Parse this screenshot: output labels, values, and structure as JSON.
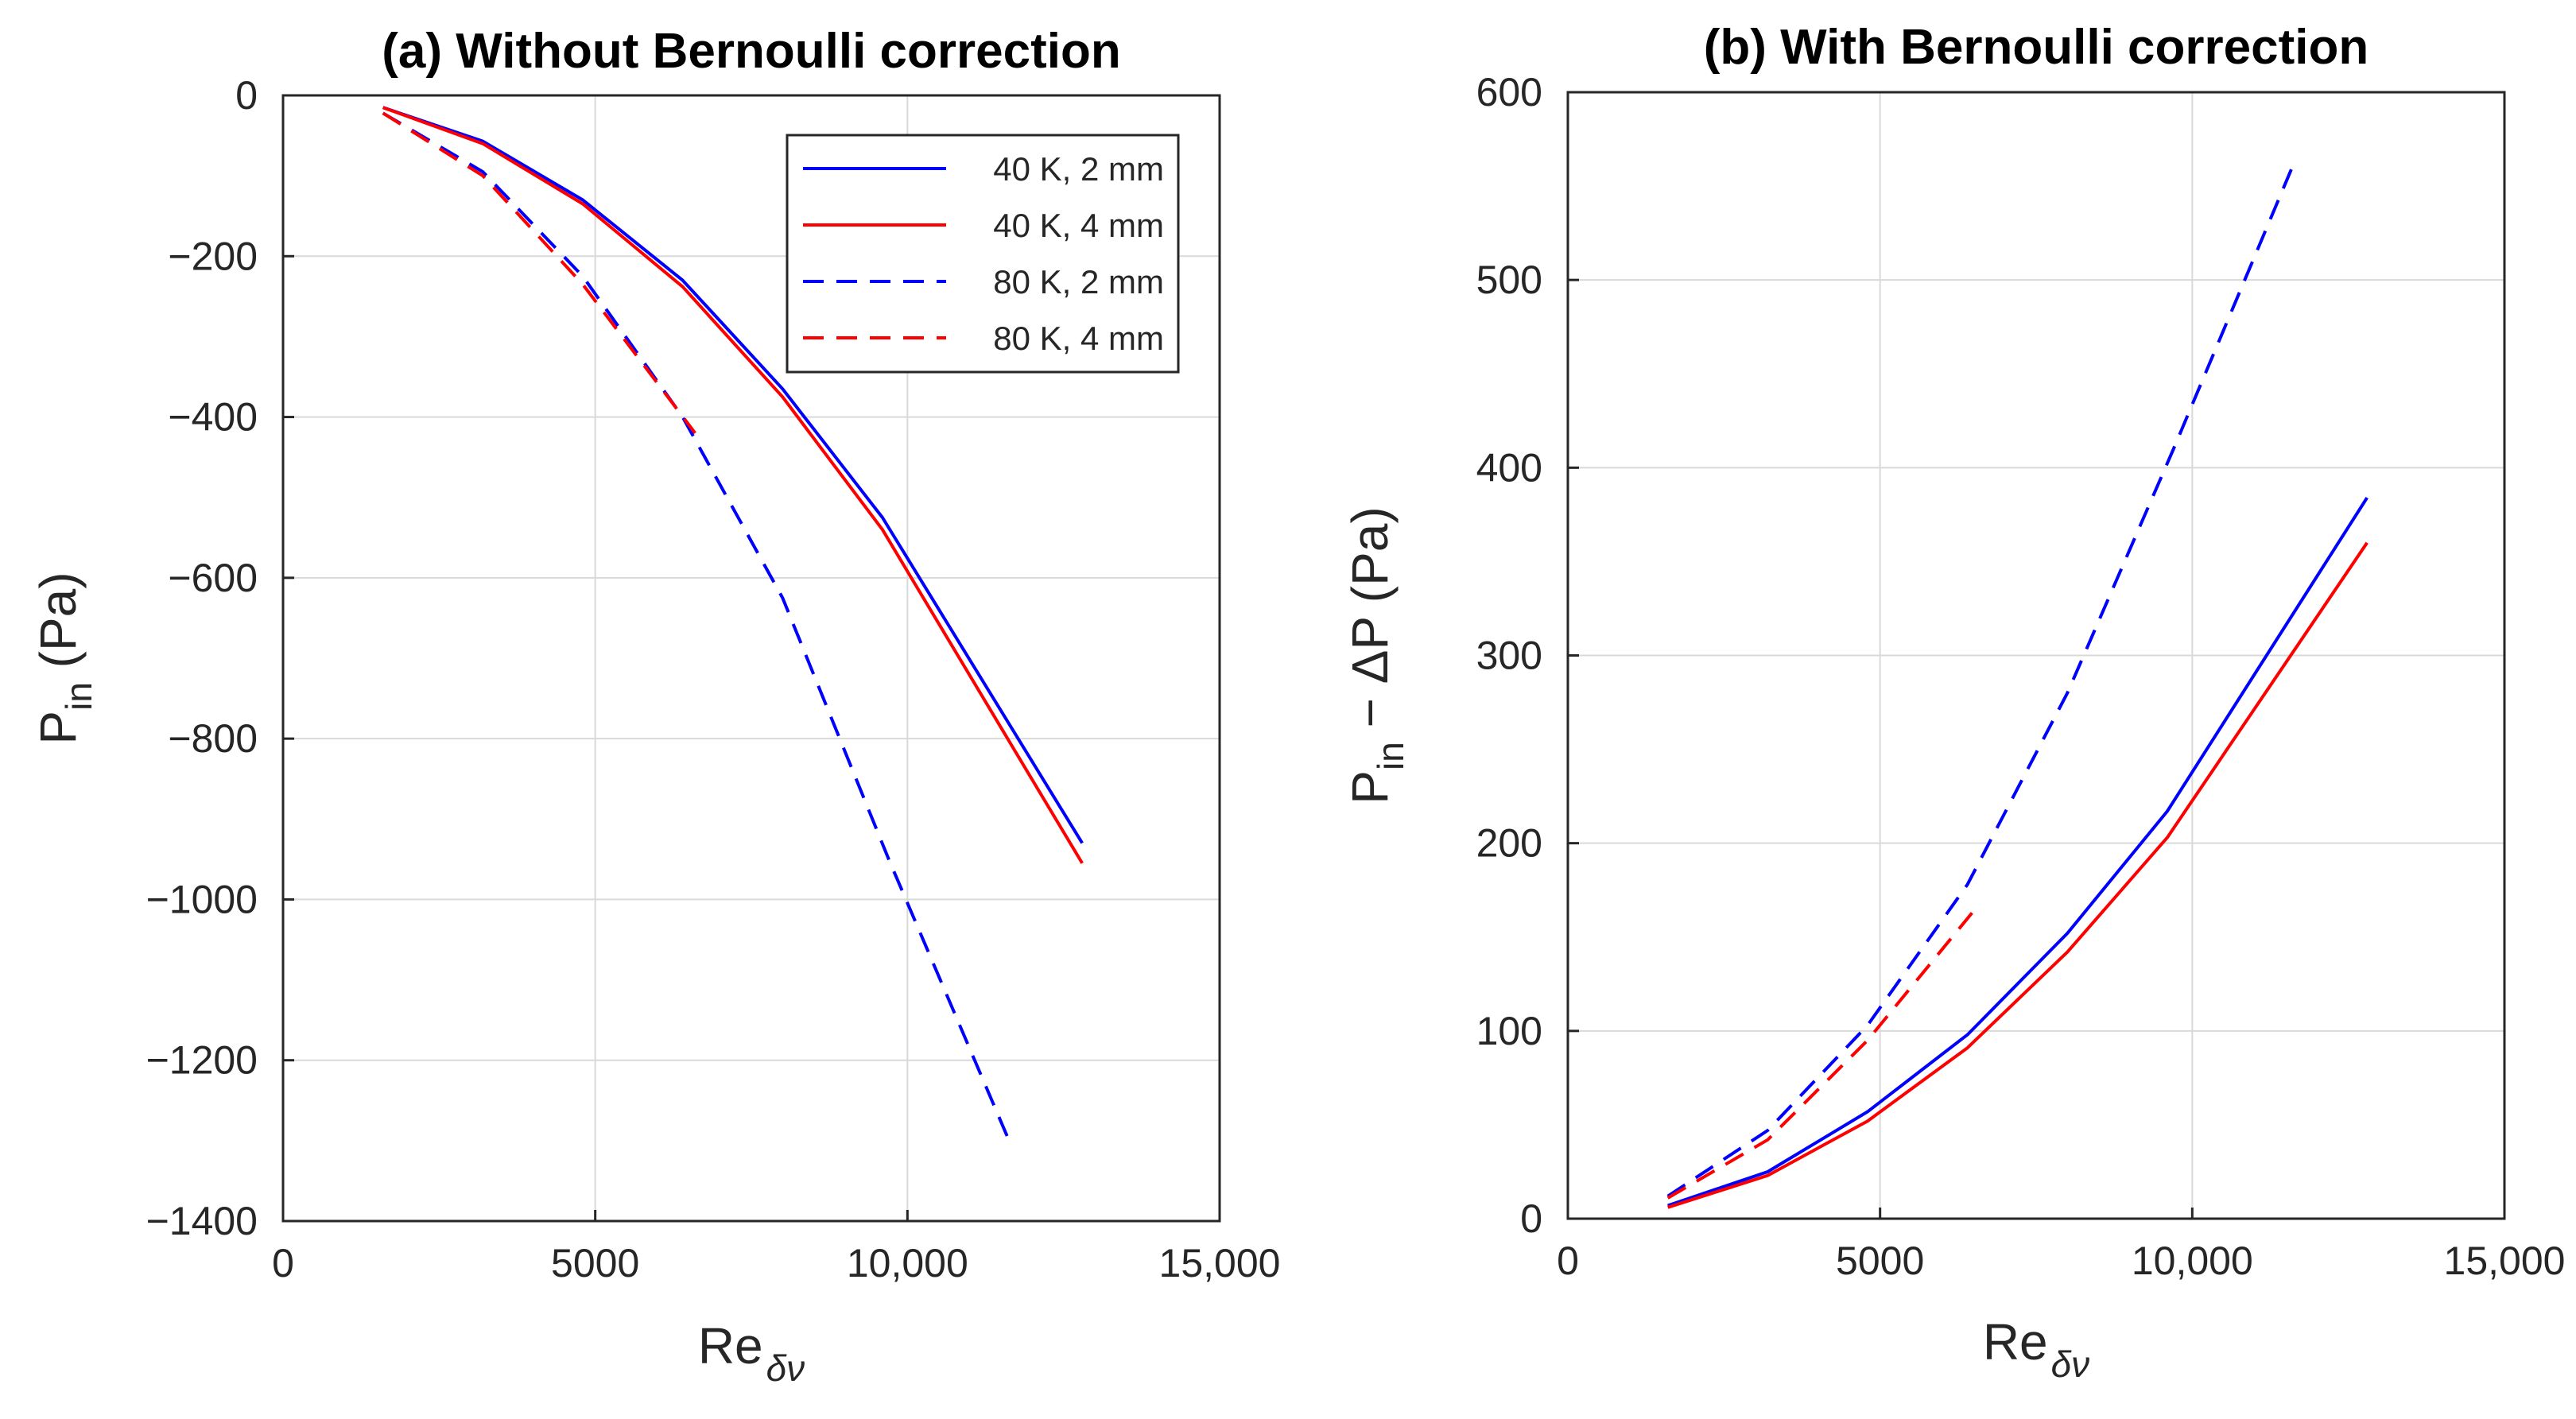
{
  "chart_data": [
    {
      "type": "line",
      "title": "(a) Without Bernoulli correction",
      "xlabel": "Re",
      "xlabel_sub": "δν",
      "ylabel": "P",
      "ylabel_sub": "in",
      "ylabel_suffix": " (Pa)",
      "xlim": [
        0,
        15000
      ],
      "ylim": [
        -1400,
        0
      ],
      "xticks": [
        0,
        5000,
        10000,
        15000
      ],
      "xtick_labels": [
        "0",
        "5000",
        "10,000",
        "15,000"
      ],
      "yticks": [
        0,
        -200,
        -400,
        -600,
        -800,
        -1000,
        -1200,
        -1400
      ],
      "ytick_labels": [
        "0",
        "−200",
        "−400",
        "−600",
        "−800",
        "−1000",
        "−1200",
        "−1400"
      ],
      "grid": true,
      "legend_position": "top-right",
      "series": [
        {
          "name": "40 K, 2 mm",
          "color": "#0000ff",
          "dash": "solid",
          "x": [
            1600,
            3200,
            4800,
            6400,
            8000,
            9600,
            12800
          ],
          "y": [
            -15,
            -57,
            -130,
            -230,
            -365,
            -525,
            -930
          ]
        },
        {
          "name": "40 K, 4 mm",
          "color": "#ff0000",
          "dash": "solid",
          "x": [
            1600,
            3200,
            4800,
            6400,
            8000,
            9600,
            12800
          ],
          "y": [
            -15,
            -60,
            -135,
            -238,
            -375,
            -540,
            -955
          ]
        },
        {
          "name": "80 K, 2 mm",
          "color": "#0000ff",
          "dash": "dashed",
          "x": [
            1600,
            3200,
            4800,
            6400,
            8000,
            9700,
            11600
          ],
          "y": [
            -22,
            -95,
            -225,
            -400,
            -625,
            -950,
            -1295
          ]
        },
        {
          "name": "80 K, 4 mm",
          "color": "#ff0000",
          "dash": "dashed",
          "x": [
            1600,
            3200,
            4800,
            6600
          ],
          "y": [
            -22,
            -100,
            -235,
            -420
          ]
        }
      ]
    },
    {
      "type": "line",
      "title": "(b) With Bernoulli correction",
      "xlabel": "Re",
      "xlabel_sub": "δν",
      "ylabel": "P",
      "ylabel_sub": "in",
      "ylabel_suffix": " − ΔP (Pa)",
      "xlim": [
        0,
        15000
      ],
      "ylim": [
        0,
        600
      ],
      "xticks": [
        0,
        5000,
        10000,
        15000
      ],
      "xtick_labels": [
        "0",
        "5000",
        "10,000",
        "15,000"
      ],
      "yticks": [
        0,
        100,
        200,
        300,
        400,
        500,
        600
      ],
      "ytick_labels": [
        "0",
        "100",
        "200",
        "300",
        "400",
        "500",
        "600"
      ],
      "grid": true,
      "series": [
        {
          "name": "40 K, 2 mm",
          "color": "#0000ff",
          "dash": "solid",
          "x": [
            1600,
            3200,
            4800,
            6400,
            8000,
            9600,
            12800
          ],
          "y": [
            7,
            25,
            57,
            98,
            152,
            217,
            384
          ]
        },
        {
          "name": "40 K, 4 mm",
          "color": "#ff0000",
          "dash": "solid",
          "x": [
            1600,
            3200,
            4800,
            6400,
            8000,
            9600,
            12800
          ],
          "y": [
            6,
            23,
            52,
            91,
            142,
            203,
            360
          ]
        },
        {
          "name": "80 K, 2 mm",
          "color": "#0000ff",
          "dash": "dashed",
          "x": [
            1600,
            3200,
            4800,
            6400,
            8000,
            9700,
            11600
          ],
          "y": [
            12,
            47,
            103,
            178,
            280,
            410,
            560
          ]
        },
        {
          "name": "80 K, 4 mm",
          "color": "#ff0000",
          "dash": "dashed",
          "x": [
            1600,
            3200,
            4800,
            6600
          ],
          "y": [
            11,
            42,
            95,
            168
          ]
        }
      ]
    }
  ]
}
